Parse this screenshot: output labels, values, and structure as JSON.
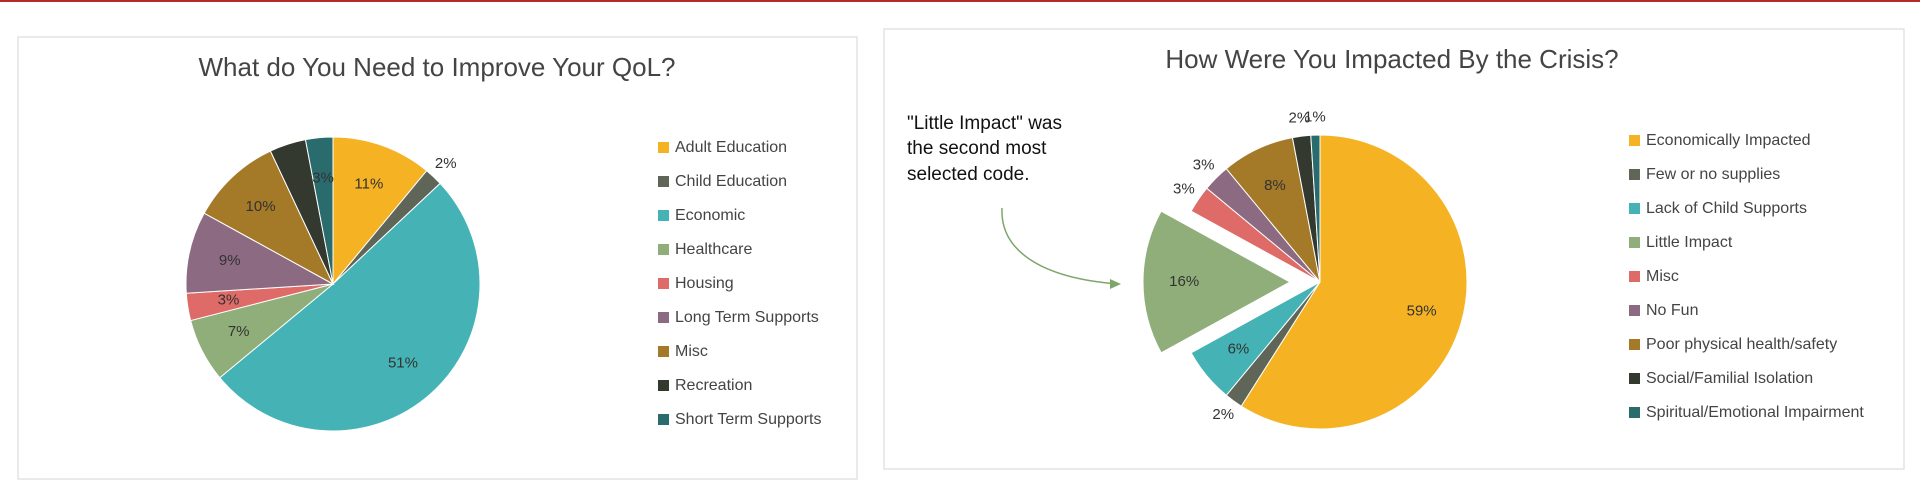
{
  "chart_data": [
    {
      "type": "pie",
      "title": "What do You Need to Improve Your QoL?",
      "categories": [
        "Adult Education",
        "Child Education",
        "Economic",
        "Healthcare",
        "Housing",
        "Long Term Supports",
        "Misc",
        "Recreation",
        "Short Term Supports"
      ],
      "values": [
        11,
        2,
        51,
        7,
        3,
        9,
        10,
        4,
        3
      ],
      "value_labels": [
        "11%",
        "2%",
        "51%",
        "7%",
        "3%",
        "9%",
        "10%",
        null,
        "3%"
      ],
      "colors": [
        "#f5b223",
        "#5f6658",
        "#45b3b5",
        "#8fae7a",
        "#de6b67",
        "#8c6a82",
        "#a47928",
        "#33392f",
        "#2a6b6d"
      ],
      "legend": "right"
    },
    {
      "type": "pie",
      "title": "How Were You Impacted By the Crisis?",
      "categories": [
        "Economically Impacted",
        "Few or no supplies",
        "Lack of Child Supports",
        "Little Impact",
        "Misc",
        "No Fun",
        "Poor physical health/safety",
        "Social/Familial Isolation",
        "Spiritual/Emotional Impairment"
      ],
      "values": [
        59,
        2,
        6,
        16,
        3,
        3,
        8,
        2,
        1
      ],
      "value_labels": [
        "59%",
        "2%",
        "6%",
        "16%",
        "3%",
        "3%",
        "8%",
        "2%",
        "1%"
      ],
      "colors": [
        "#f5b223",
        "#5f6658",
        "#45b3b5",
        "#8fae7a",
        "#de6b67",
        "#8c6a82",
        "#a47928",
        "#33392f",
        "#2a6b6d"
      ],
      "legend": "right",
      "exploded": "Little Impact",
      "annotation": [
        "\"Little Impact\" was",
        "the second most",
        "selected code."
      ]
    }
  ]
}
